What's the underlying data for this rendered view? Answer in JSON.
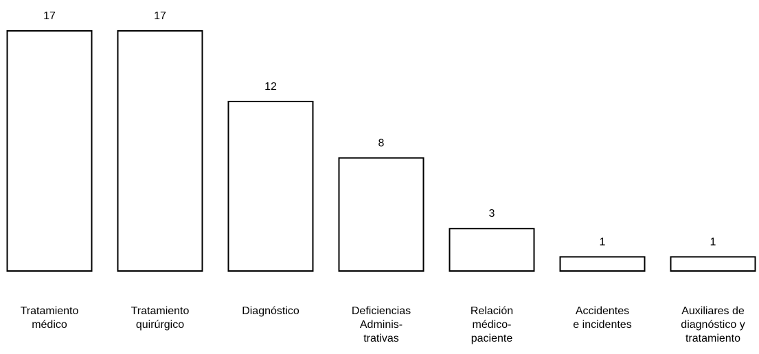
{
  "chart_data": {
    "type": "bar",
    "title": "",
    "xlabel": "",
    "ylabel": "",
    "grid": false,
    "legend": "none",
    "categories": [
      [
        "Tratamiento",
        "médico"
      ],
      [
        "Tratamiento",
        "quirúrgico"
      ],
      [
        "Diagnóstico"
      ],
      [
        "Deficiencias",
        "Adminis-",
        "trativas"
      ],
      [
        "Relación",
        "médico-",
        "paciente"
      ],
      [
        "Accidentes",
        "e incidentes"
      ],
      [
        "Auxiliares de",
        "diagnóstico y",
        "tratamiento"
      ]
    ],
    "values": [
      17,
      17,
      12,
      8,
      3,
      1,
      1
    ],
    "data_labels": [
      "17",
      "17",
      "12",
      "8",
      "3",
      "1",
      "1"
    ],
    "ylim": [
      0,
      17
    ],
    "colors": {
      "bar_fill": "#ffffff",
      "bar_stroke": "#000000",
      "text": "#000000"
    }
  }
}
